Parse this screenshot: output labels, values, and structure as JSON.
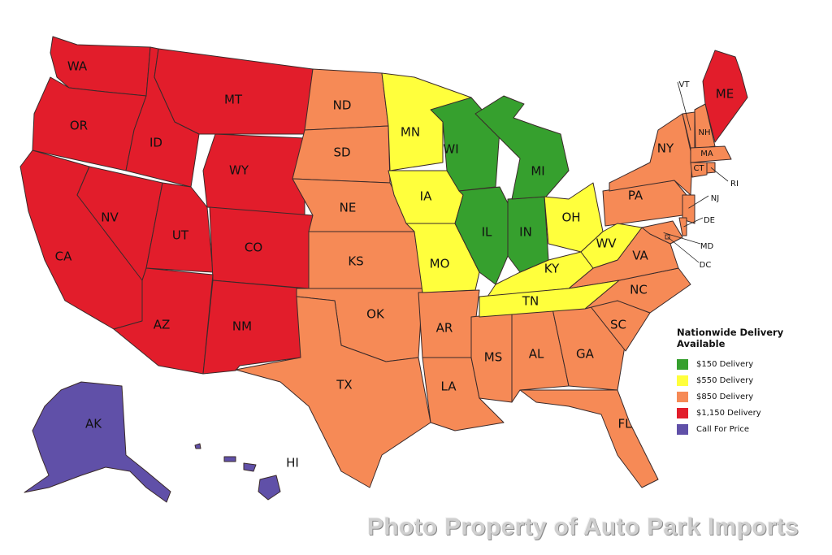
{
  "colors": {
    "green": "#36a02e",
    "yellow": "#ffff3c",
    "orange": "#f68a56",
    "red": "#e21d2b",
    "purple": "#6050a8"
  },
  "legend": {
    "title": "Nationwide Delivery Available",
    "items": [
      {
        "label": "$150 Delivery",
        "tier": "green"
      },
      {
        "label": "$550 Delivery",
        "tier": "yellow"
      },
      {
        "label": "$850 Delivery",
        "tier": "orange"
      },
      {
        "label": "$1,150 Delivery",
        "tier": "red"
      },
      {
        "label": "Call For Price",
        "tier": "purple"
      }
    ]
  },
  "states": [
    {
      "code": "WA",
      "tier": "red"
    },
    {
      "code": "OR",
      "tier": "red"
    },
    {
      "code": "CA",
      "tier": "red"
    },
    {
      "code": "NV",
      "tier": "red"
    },
    {
      "code": "ID",
      "tier": "red"
    },
    {
      "code": "MT",
      "tier": "red"
    },
    {
      "code": "WY",
      "tier": "red"
    },
    {
      "code": "UT",
      "tier": "red"
    },
    {
      "code": "CO",
      "tier": "red"
    },
    {
      "code": "AZ",
      "tier": "red"
    },
    {
      "code": "NM",
      "tier": "red"
    },
    {
      "code": "ME",
      "tier": "red"
    },
    {
      "code": "ND",
      "tier": "orange"
    },
    {
      "code": "SD",
      "tier": "orange"
    },
    {
      "code": "NE",
      "tier": "orange"
    },
    {
      "code": "KS",
      "tier": "orange"
    },
    {
      "code": "OK",
      "tier": "orange"
    },
    {
      "code": "TX",
      "tier": "orange"
    },
    {
      "code": "AR",
      "tier": "orange"
    },
    {
      "code": "LA",
      "tier": "orange"
    },
    {
      "code": "MS",
      "tier": "orange"
    },
    {
      "code": "AL",
      "tier": "orange"
    },
    {
      "code": "GA",
      "tier": "orange"
    },
    {
      "code": "FL",
      "tier": "orange"
    },
    {
      "code": "SC",
      "tier": "orange"
    },
    {
      "code": "NC",
      "tier": "orange"
    },
    {
      "code": "VA",
      "tier": "orange"
    },
    {
      "code": "PA",
      "tier": "orange"
    },
    {
      "code": "NY",
      "tier": "orange"
    },
    {
      "code": "NJ",
      "tier": "orange"
    },
    {
      "code": "DE",
      "tier": "orange"
    },
    {
      "code": "MD",
      "tier": "orange"
    },
    {
      "code": "DC",
      "tier": "orange"
    },
    {
      "code": "VT",
      "tier": "orange"
    },
    {
      "code": "NH",
      "tier": "orange"
    },
    {
      "code": "MA",
      "tier": "orange"
    },
    {
      "code": "CT",
      "tier": "orange"
    },
    {
      "code": "RI",
      "tier": "orange"
    },
    {
      "code": "MN",
      "tier": "yellow"
    },
    {
      "code": "IA",
      "tier": "yellow"
    },
    {
      "code": "MO",
      "tier": "yellow"
    },
    {
      "code": "OH",
      "tier": "yellow"
    },
    {
      "code": "KY",
      "tier": "yellow"
    },
    {
      "code": "TN",
      "tier": "yellow"
    },
    {
      "code": "WV",
      "tier": "yellow"
    },
    {
      "code": "WI",
      "tier": "green"
    },
    {
      "code": "IL",
      "tier": "green"
    },
    {
      "code": "IN",
      "tier": "green"
    },
    {
      "code": "MI",
      "tier": "green"
    },
    {
      "code": "AK",
      "tier": "purple"
    },
    {
      "code": "HI",
      "tier": "purple"
    }
  ],
  "watermark": "Photo Property of Auto Park Imports"
}
